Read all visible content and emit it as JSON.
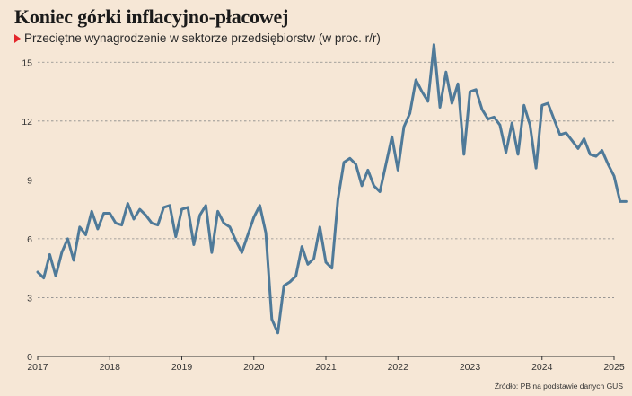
{
  "header": {
    "title": "Koniec górki inflacyjno-płacowej",
    "subtitle": "Przeciętne wynagrodzenie w sektorze przedsiębiorstw (w proc. r/r)"
  },
  "source": "Źródło: PB na podstawie danych GUS",
  "colors": {
    "line": "#4f7a99",
    "grid": "#8a8a8a",
    "axis": "#333333",
    "marker": "#e3262a",
    "background": "#f6e7d6"
  },
  "chart_data": {
    "type": "line",
    "title": "Koniec górki inflacyjno-płacowej",
    "subtitle": "Przeciętne wynagrodzenie w sektorze przedsiębiorstw (w proc. r/r)",
    "xlabel": "",
    "ylabel": "",
    "grid": "horizontal dashed",
    "y_ticks": [
      0,
      3,
      6,
      9,
      12,
      15
    ],
    "x_ticks": [
      "2017",
      "2018",
      "2019",
      "2020",
      "2021",
      "2022",
      "2023",
      "2024",
      "2025"
    ],
    "x_range": [
      "2017-01",
      "2025-03"
    ],
    "ylim": [
      0,
      15.8
    ],
    "series": [
      {
        "x": [
          "2017-01",
          "2017-02",
          "2017-03",
          "2017-04",
          "2017-05",
          "2017-06",
          "2017-07",
          "2017-08",
          "2017-09",
          "2017-10",
          "2017-11",
          "2017-12",
          "2018-01",
          "2018-02",
          "2018-03",
          "2018-04",
          "2018-05",
          "2018-06",
          "2018-07",
          "2018-08",
          "2018-09",
          "2018-10",
          "2018-11",
          "2018-12",
          "2019-01",
          "2019-02",
          "2019-03",
          "2019-04",
          "2019-05",
          "2019-06",
          "2019-07",
          "2019-08",
          "2019-09",
          "2019-10",
          "2019-11",
          "2019-12",
          "2020-01",
          "2020-02",
          "2020-03",
          "2020-04",
          "2020-05",
          "2020-06",
          "2020-07",
          "2020-08",
          "2020-09",
          "2020-10",
          "2020-11",
          "2020-12",
          "2021-01",
          "2021-02",
          "2021-03",
          "2021-04",
          "2021-05",
          "2021-06",
          "2021-07",
          "2021-08",
          "2021-09",
          "2021-10",
          "2021-11",
          "2021-12",
          "2022-01",
          "2022-02",
          "2022-03",
          "2022-04",
          "2022-05",
          "2022-06",
          "2022-07",
          "2022-08",
          "2022-09",
          "2022-10",
          "2022-11",
          "2022-12",
          "2023-01",
          "2023-02",
          "2023-03",
          "2023-04",
          "2023-05",
          "2023-06",
          "2023-07",
          "2023-08",
          "2023-09",
          "2023-10",
          "2023-11",
          "2023-12",
          "2024-01",
          "2024-02",
          "2024-03",
          "2024-04",
          "2024-05",
          "2024-06",
          "2024-07",
          "2024-08",
          "2024-09",
          "2024-10",
          "2024-11",
          "2024-12",
          "2025-01",
          "2025-02",
          "2025-03"
        ],
        "values": [
          4.3,
          4.0,
          5.2,
          4.1,
          5.3,
          6.0,
          4.9,
          6.6,
          6.2,
          7.4,
          6.5,
          7.3,
          7.3,
          6.8,
          6.7,
          7.8,
          7.0,
          7.5,
          7.2,
          6.8,
          6.7,
          7.6,
          7.7,
          6.1,
          7.5,
          7.6,
          5.7,
          7.2,
          7.7,
          5.3,
          7.4,
          6.8,
          6.6,
          5.9,
          5.3,
          6.2,
          7.1,
          7.7,
          6.3,
          1.9,
          1.2,
          3.6,
          3.8,
          4.1,
          5.6,
          4.7,
          5.0,
          6.6,
          4.8,
          4.5,
          8.0,
          9.9,
          10.1,
          9.8,
          8.7,
          9.5,
          8.7,
          8.4,
          9.8,
          11.2,
          9.5,
          11.7,
          12.4,
          14.1,
          13.5,
          13.0,
          15.9,
          12.7,
          14.5,
          12.9,
          13.9,
          10.3,
          13.5,
          13.6,
          12.6,
          12.1,
          12.2,
          11.8,
          10.4,
          11.9,
          10.3,
          12.8,
          11.8,
          9.6,
          12.8,
          12.9,
          12.1,
          11.3,
          11.4,
          11.0,
          10.6,
          11.1,
          10.3,
          10.2,
          10.5,
          9.8,
          9.2,
          7.9,
          7.9
        ]
      }
    ]
  }
}
